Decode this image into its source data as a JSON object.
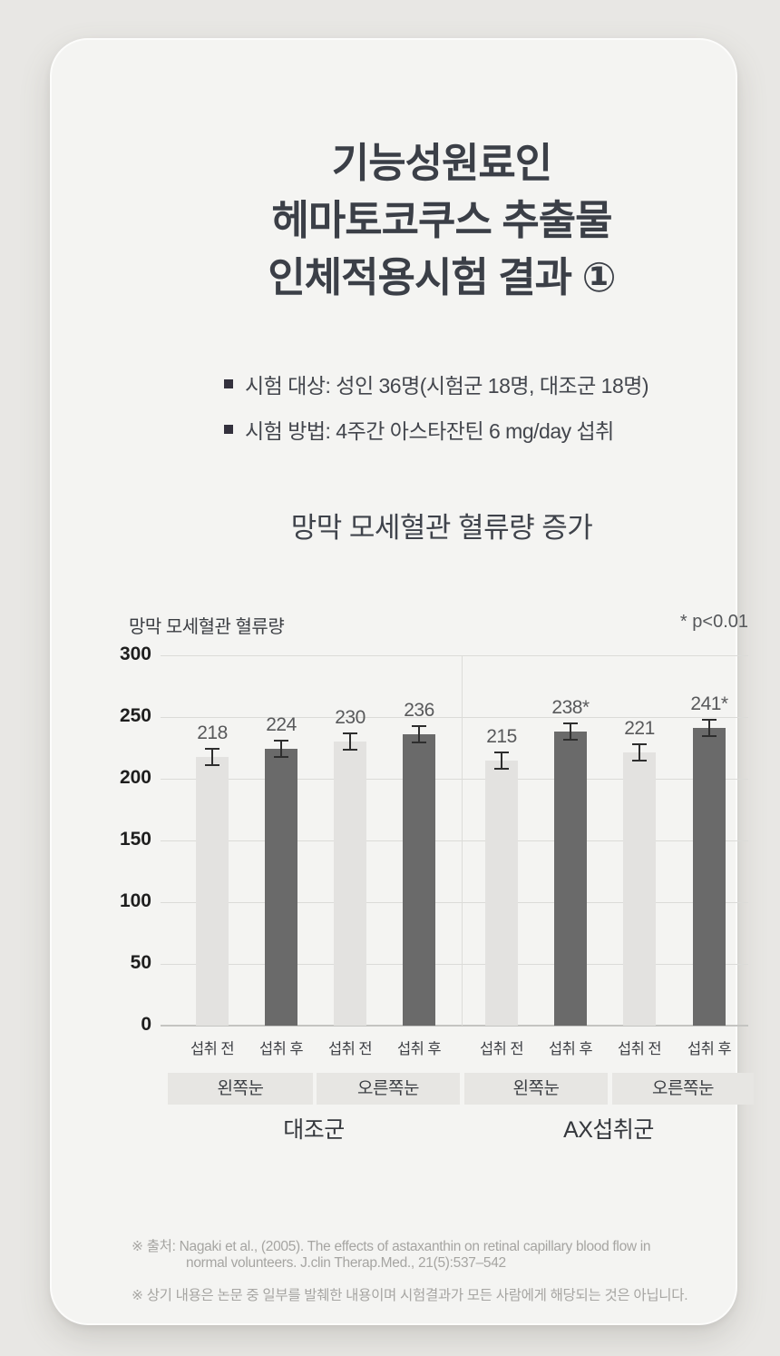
{
  "header": {
    "title_lines": [
      "기능성원료인",
      "헤마토코쿠스 추출물",
      "인체적용시험 결과 ①"
    ],
    "bullets": [
      {
        "label": "시험 대상: 성인 36명(시험군 18명, 대조군 18명)"
      },
      {
        "label": "시험 방법: 4주간 아스타잔틴 6 mg/day 섭취"
      }
    ]
  },
  "section": {
    "title": "망막 모세혈관 혈류량 증가"
  },
  "chart_data": {
    "type": "bar",
    "title": "망막 모세혈관 혈류량 증가",
    "ylabel": "망막 모세혈관 혈류량",
    "annotation": "* p<0.01",
    "ylim": [
      0,
      300
    ],
    "yticks": [
      300,
      250,
      200,
      150,
      100,
      50,
      0
    ],
    "grid": true,
    "error_bars": true,
    "bars": [
      {
        "x": "섭취 전",
        "value": 218,
        "label": "218",
        "phase": "pre"
      },
      {
        "x": "섭취 후",
        "value": 224,
        "label": "224",
        "phase": "post"
      },
      {
        "x": "섭취 전",
        "value": 230,
        "label": "230",
        "phase": "pre"
      },
      {
        "x": "섭취 후",
        "value": 236,
        "label": "236",
        "phase": "post"
      },
      {
        "x": "섭취 전",
        "value": 215,
        "label": "215",
        "phase": "pre"
      },
      {
        "x": "섭취 후",
        "value": 238,
        "label": "238*",
        "phase": "post"
      },
      {
        "x": "섭취 전",
        "value": 221,
        "label": "221",
        "phase": "pre"
      },
      {
        "x": "섭취 후",
        "value": 241,
        "label": "241*",
        "phase": "post"
      }
    ],
    "colors": {
      "pre": "#e3e2e0",
      "post": "#6a6a6a"
    },
    "eye_groups": [
      "왼쪽눈",
      "오른쪽눈",
      "왼쪽눈",
      "오른쪽눈"
    ],
    "treatment_groups": [
      "대조군",
      "AX섭취군"
    ]
  },
  "footnotes": {
    "source_line1": "※ 출처: Nagaki et al., (2005). The effects of astaxanthin on retinal capillary blood flow in",
    "source_line2": "normal volunteers. J.clin Therap.Med., 21(5):537–542",
    "disclaimer": "※ 상기 내용은 논문 중 일부를 발췌한 내용이며 시험결과가 모든 사람에게 해당되는 것은 아닙니다."
  }
}
